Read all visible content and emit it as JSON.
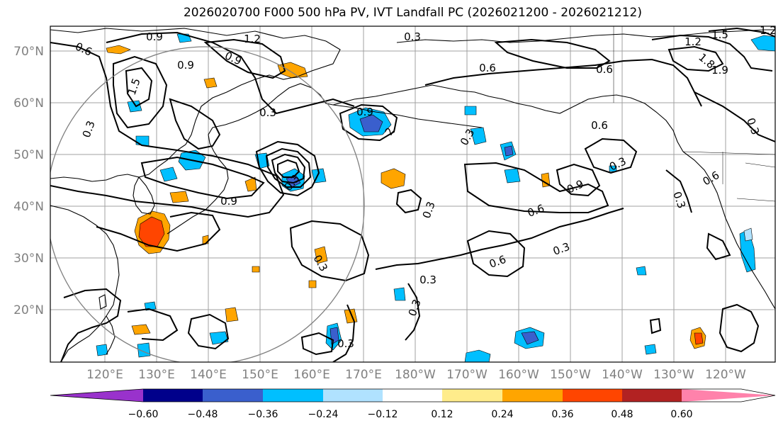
{
  "title": "2026020700 F000 500 hPa PV, IVT Landfall PC (2026021200 - 2026021212)",
  "lat_labels": [
    "20°N",
    "30°N",
    "40°N",
    "50°N",
    "60°N",
    "70°N"
  ],
  "lon_labels": [
    "120°E",
    "130°E",
    "140°E",
    "150°E",
    "160°E",
    "170°E",
    "180°W",
    "170°W",
    "160°W",
    "150°W",
    "140°W",
    "130°W",
    "120°W"
  ],
  "colorbar": {
    "ticks": [
      "−0.60",
      "−0.48",
      "−0.36",
      "−0.24",
      "−0.12",
      "0.12",
      "0.24",
      "0.36",
      "0.48",
      "0.60"
    ],
    "colors": [
      "#9932cc",
      "#00008b",
      "#3a5fcd",
      "#00bfff",
      "#b0e2ff",
      "#ffffff",
      "#ffec8b",
      "#ffa500",
      "#ff4500",
      "#b22222",
      "#ff82ab"
    ]
  },
  "contour_labels": [
    "0.9",
    "1.2",
    "0.6",
    "0.9",
    "1.5",
    "0.3",
    "1.2",
    "0.3",
    "0.9",
    "0.3",
    "0.6",
    "0.6",
    "1.2",
    "1.5",
    "1.8",
    "1.9",
    "0.9",
    "0.6",
    "0.3",
    "0.3",
    "0.6",
    "0.3",
    "0.9",
    "0.6",
    "0.3",
    "0.6",
    "0.3",
    "0.3",
    "0.3",
    "0.3",
    "0.3",
    "0.3",
    "0.9",
    "0.3",
    "2"
  ],
  "colors": {
    "axis_label": "#808080",
    "contour": "#000000",
    "coast": "#000000",
    "grid": "#a0a0a0",
    "circle": "#808080"
  }
}
